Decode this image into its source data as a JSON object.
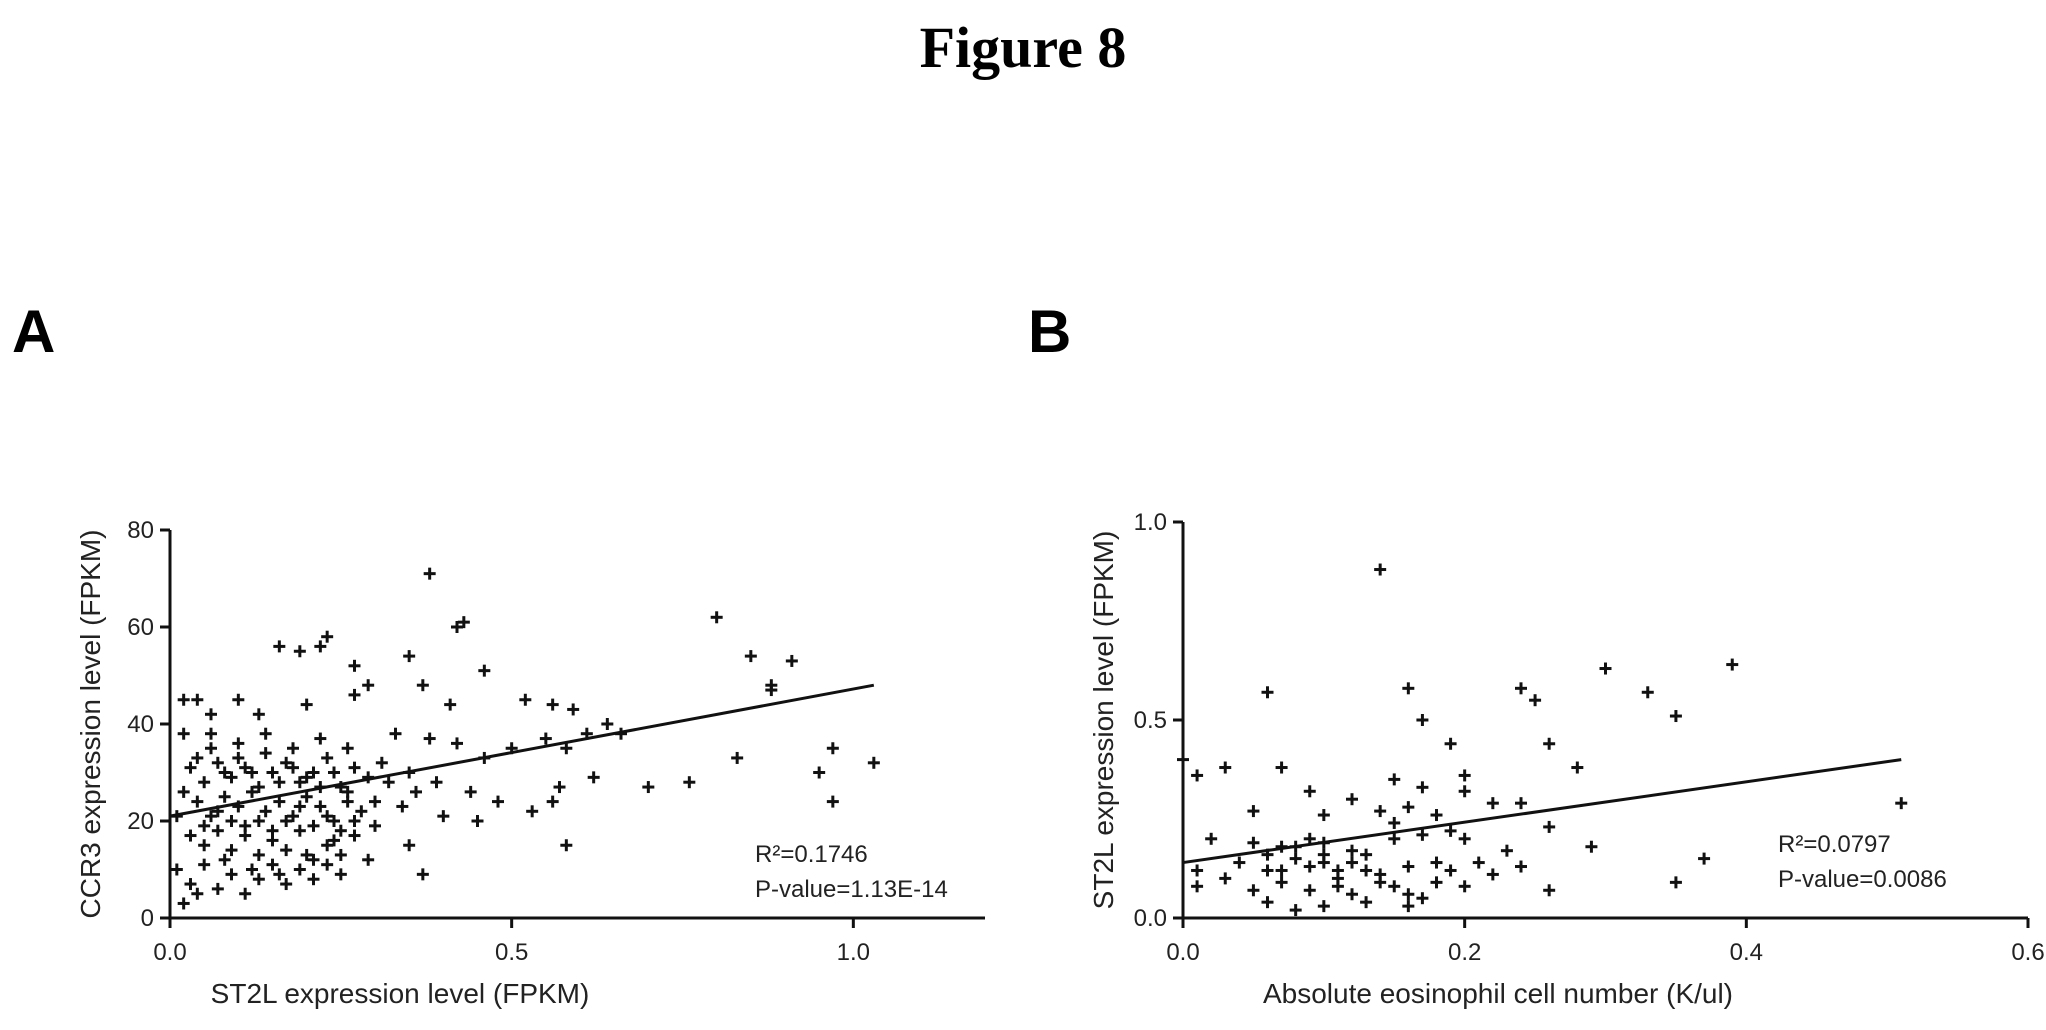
{
  "figure_title": "Figure 8",
  "chart_data": [
    {
      "panel": "A",
      "type": "scatter",
      "xlabel": "ST2L expression level (FPKM)",
      "ylabel": "CCR3 expression level (FPKM)",
      "xlim": [
        0,
        1.2
      ],
      "ylim": [
        0,
        80
      ],
      "xticks": [
        0.0,
        0.5,
        1.0
      ],
      "xtick_labels": [
        "0.0",
        "0.5",
        "1.0"
      ],
      "yticks": [
        0,
        20,
        40,
        60,
        80
      ],
      "ytick_labels": [
        "0",
        "20",
        "40",
        "60",
        "80"
      ],
      "grid": false,
      "regression": {
        "x0": 0.0,
        "y0": 21,
        "x1": 1.03,
        "y1": 48
      },
      "annotations": [
        "R²=0.1746",
        "P-value=1.13E-14"
      ],
      "points": [
        [
          0.38,
          71
        ],
        [
          0.8,
          62
        ],
        [
          0.43,
          61
        ],
        [
          0.42,
          60
        ],
        [
          0.85,
          54
        ],
        [
          0.91,
          53
        ],
        [
          0.35,
          54
        ],
        [
          0.88,
          48
        ],
        [
          0.88,
          47
        ],
        [
          0.46,
          51
        ],
        [
          0.37,
          48
        ],
        [
          0.16,
          56
        ],
        [
          0.19,
          55
        ],
        [
          0.23,
          58
        ],
        [
          0.22,
          56
        ],
        [
          0.27,
          52
        ],
        [
          0.29,
          48
        ],
        [
          0.2,
          44
        ],
        [
          0.27,
          46
        ],
        [
          0.41,
          44
        ],
        [
          0.02,
          45
        ],
        [
          0.04,
          45
        ],
        [
          0.06,
          42
        ],
        [
          0.1,
          45
        ],
        [
          0.13,
          42
        ],
        [
          0.52,
          45
        ],
        [
          0.56,
          44
        ],
        [
          0.59,
          43
        ],
        [
          0.02,
          38
        ],
        [
          0.06,
          38
        ],
        [
          0.1,
          36
        ],
        [
          0.14,
          38
        ],
        [
          0.18,
          35
        ],
        [
          0.22,
          37
        ],
        [
          0.26,
          35
        ],
        [
          0.33,
          38
        ],
        [
          0.38,
          37
        ],
        [
          0.42,
          36
        ],
        [
          0.46,
          33
        ],
        [
          0.5,
          35
        ],
        [
          0.55,
          37
        ],
        [
          0.58,
          35
        ],
        [
          0.61,
          38
        ],
        [
          0.64,
          40
        ],
        [
          0.66,
          38
        ],
        [
          0.83,
          33
        ],
        [
          0.97,
          35
        ],
        [
          1.03,
          32
        ],
        [
          0.95,
          30
        ],
        [
          0.97,
          24
        ],
        [
          0.7,
          27
        ],
        [
          0.76,
          28
        ],
        [
          0.03,
          31
        ],
        [
          0.05,
          28
        ],
        [
          0.07,
          32
        ],
        [
          0.09,
          29
        ],
        [
          0.11,
          31
        ],
        [
          0.13,
          27
        ],
        [
          0.15,
          30
        ],
        [
          0.17,
          32
        ],
        [
          0.19,
          28
        ],
        [
          0.21,
          30
        ],
        [
          0.23,
          33
        ],
        [
          0.25,
          27
        ],
        [
          0.27,
          31
        ],
        [
          0.29,
          29
        ],
        [
          0.31,
          32
        ],
        [
          0.35,
          30
        ],
        [
          0.39,
          28
        ],
        [
          0.44,
          26
        ],
        [
          0.48,
          24
        ],
        [
          0.53,
          22
        ],
        [
          0.57,
          27
        ],
        [
          0.62,
          29
        ],
        [
          0.04,
          24
        ],
        [
          0.06,
          21
        ],
        [
          0.08,
          25
        ],
        [
          0.1,
          23
        ],
        [
          0.12,
          26
        ],
        [
          0.14,
          22
        ],
        [
          0.16,
          24
        ],
        [
          0.18,
          21
        ],
        [
          0.2,
          25
        ],
        [
          0.22,
          23
        ],
        [
          0.24,
          20
        ],
        [
          0.26,
          24
        ],
        [
          0.28,
          22
        ],
        [
          0.3,
          19
        ],
        [
          0.34,
          23
        ],
        [
          0.4,
          21
        ],
        [
          0.45,
          20
        ],
        [
          0.56,
          24
        ],
        [
          0.58,
          15
        ],
        [
          0.03,
          17
        ],
        [
          0.05,
          15
        ],
        [
          0.07,
          18
        ],
        [
          0.09,
          14
        ],
        [
          0.11,
          17
        ],
        [
          0.13,
          13
        ],
        [
          0.15,
          16
        ],
        [
          0.17,
          14
        ],
        [
          0.19,
          18
        ],
        [
          0.21,
          12
        ],
        [
          0.23,
          15
        ],
        [
          0.25,
          13
        ],
        [
          0.27,
          17
        ],
        [
          0.29,
          12
        ],
        [
          0.35,
          15
        ],
        [
          0.37,
          9
        ],
        [
          0.01,
          10
        ],
        [
          0.03,
          7
        ],
        [
          0.05,
          11
        ],
        [
          0.07,
          6
        ],
        [
          0.09,
          9
        ],
        [
          0.11,
          5
        ],
        [
          0.13,
          8
        ],
        [
          0.15,
          11
        ],
        [
          0.17,
          7
        ],
        [
          0.19,
          10
        ],
        [
          0.21,
          8
        ],
        [
          0.23,
          11
        ],
        [
          0.25,
          9
        ],
        [
          0.02,
          3
        ],
        [
          0.04,
          5
        ],
        [
          0.08,
          12
        ],
        [
          0.12,
          10
        ],
        [
          0.16,
          9
        ],
        [
          0.2,
          13
        ],
        [
          0.24,
          16
        ],
        [
          0.01,
          21
        ],
        [
          0.02,
          26
        ],
        [
          0.04,
          33
        ],
        [
          0.06,
          35
        ],
        [
          0.08,
          30
        ],
        [
          0.1,
          33
        ],
        [
          0.12,
          30
        ],
        [
          0.14,
          34
        ],
        [
          0.16,
          28
        ],
        [
          0.18,
          31
        ],
        [
          0.2,
          29
        ],
        [
          0.22,
          27
        ],
        [
          0.24,
          30
        ],
        [
          0.26,
          26
        ],
        [
          0.3,
          24
        ],
        [
          0.32,
          28
        ],
        [
          0.36,
          26
        ],
        [
          0.05,
          19
        ],
        [
          0.07,
          22
        ],
        [
          0.09,
          20
        ],
        [
          0.11,
          19
        ],
        [
          0.13,
          20
        ],
        [
          0.15,
          18
        ],
        [
          0.17,
          20
        ],
        [
          0.19,
          23
        ],
        [
          0.21,
          19
        ],
        [
          0.23,
          21
        ],
        [
          0.25,
          18
        ],
        [
          0.27,
          20
        ]
      ]
    },
    {
      "panel": "B",
      "type": "scatter",
      "xlabel": "Absolute eosinophil cell number (K/ul)",
      "ylabel": "ST2L expression level (FPKM)",
      "xlim": [
        0,
        0.6
      ],
      "ylim": [
        0,
        1.0
      ],
      "xticks": [
        0.0,
        0.2,
        0.4,
        0.6
      ],
      "xtick_labels": [
        "0.0",
        "0.2",
        "0.4",
        "0.6"
      ],
      "yticks": [
        0.0,
        0.5,
        1.0
      ],
      "ytick_labels": [
        "0.0",
        "0.5",
        "1.0"
      ],
      "grid": false,
      "regression": {
        "x0": 0.0,
        "y0": 0.14,
        "x1": 0.51,
        "y1": 0.4
      },
      "annotations": [
        "R²=0.0797",
        "P-value=0.0086"
      ],
      "points": [
        [
          0.14,
          0.88
        ],
        [
          0.3,
          0.63
        ],
        [
          0.39,
          0.64
        ],
        [
          0.24,
          0.58
        ],
        [
          0.25,
          0.55
        ],
        [
          0.33,
          0.57
        ],
        [
          0.16,
          0.58
        ],
        [
          0.06,
          0.57
        ],
        [
          0.35,
          0.51
        ],
        [
          0.17,
          0.5
        ],
        [
          0.19,
          0.44
        ],
        [
          0.26,
          0.44
        ],
        [
          0.28,
          0.38
        ],
        [
          0.0,
          0.4
        ],
        [
          0.03,
          0.38
        ],
        [
          0.07,
          0.38
        ],
        [
          0.15,
          0.35
        ],
        [
          0.2,
          0.36
        ],
        [
          0.01,
          0.36
        ],
        [
          0.09,
          0.32
        ],
        [
          0.12,
          0.3
        ],
        [
          0.17,
          0.33
        ],
        [
          0.2,
          0.32
        ],
        [
          0.05,
          0.27
        ],
        [
          0.1,
          0.26
        ],
        [
          0.14,
          0.27
        ],
        [
          0.16,
          0.28
        ],
        [
          0.19,
          0.22
        ],
        [
          0.22,
          0.29
        ],
        [
          0.24,
          0.29
        ],
        [
          0.26,
          0.23
        ],
        [
          0.51,
          0.29
        ],
        [
          0.02,
          0.2
        ],
        [
          0.05,
          0.19
        ],
        [
          0.07,
          0.18
        ],
        [
          0.1,
          0.19
        ],
        [
          0.12,
          0.17
        ],
        [
          0.15,
          0.2
        ],
        [
          0.17,
          0.21
        ],
        [
          0.2,
          0.2
        ],
        [
          0.23,
          0.17
        ],
        [
          0.29,
          0.18
        ],
        [
          0.01,
          0.12
        ],
        [
          0.04,
          0.14
        ],
        [
          0.06,
          0.12
        ],
        [
          0.08,
          0.15
        ],
        [
          0.1,
          0.14
        ],
        [
          0.11,
          0.12
        ],
        [
          0.13,
          0.16
        ],
        [
          0.16,
          0.13
        ],
        [
          0.18,
          0.14
        ],
        [
          0.19,
          0.12
        ],
        [
          0.21,
          0.14
        ],
        [
          0.37,
          0.15
        ],
        [
          0.01,
          0.08
        ],
        [
          0.03,
          0.1
        ],
        [
          0.05,
          0.07
        ],
        [
          0.07,
          0.09
        ],
        [
          0.09,
          0.07
        ],
        [
          0.11,
          0.1
        ],
        [
          0.12,
          0.06
        ],
        [
          0.14,
          0.09
        ],
        [
          0.16,
          0.06
        ],
        [
          0.18,
          0.09
        ],
        [
          0.2,
          0.08
        ],
        [
          0.26,
          0.07
        ],
        [
          0.35,
          0.09
        ],
        [
          0.06,
          0.04
        ],
        [
          0.08,
          0.02
        ],
        [
          0.1,
          0.03
        ],
        [
          0.13,
          0.04
        ],
        [
          0.16,
          0.03
        ],
        [
          0.17,
          0.05
        ],
        [
          0.07,
          0.12
        ],
        [
          0.09,
          0.13
        ],
        [
          0.1,
          0.16
        ],
        [
          0.12,
          0.14
        ],
        [
          0.14,
          0.11
        ],
        [
          0.15,
          0.08
        ],
        [
          0.08,
          0.18
        ],
        [
          0.09,
          0.2
        ],
        [
          0.11,
          0.08
        ],
        [
          0.13,
          0.12
        ],
        [
          0.06,
          0.16
        ],
        [
          0.22,
          0.11
        ],
        [
          0.24,
          0.13
        ],
        [
          0.18,
          0.26
        ],
        [
          0.15,
          0.24
        ]
      ]
    }
  ]
}
